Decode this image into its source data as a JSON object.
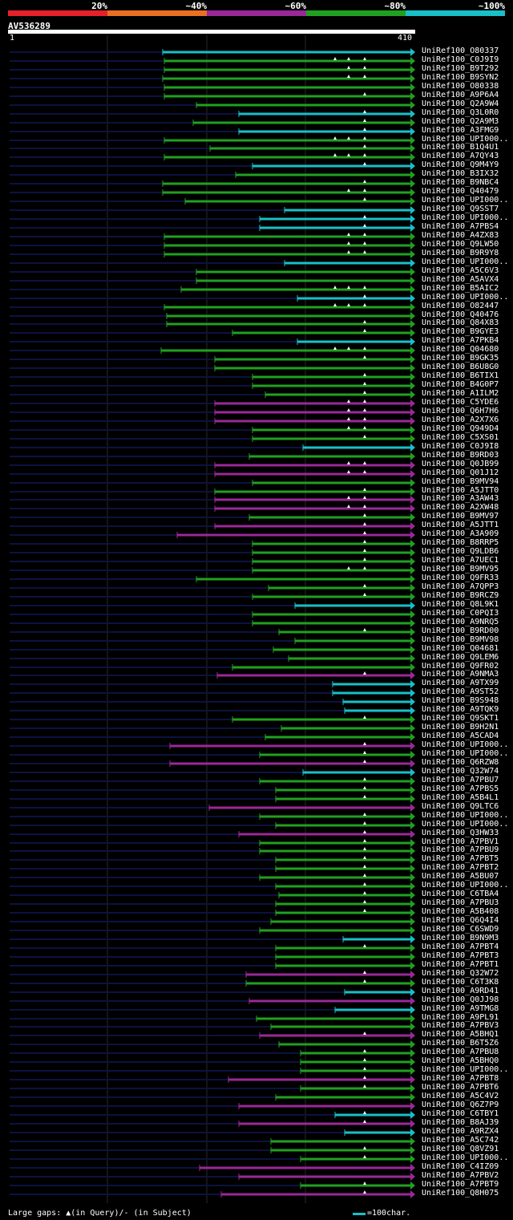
{
  "legend": [
    {
      "label": "20%",
      "color": "#e8202a"
    },
    {
      "label": "~40%",
      "color": "#e87020"
    },
    {
      "label": "~60%",
      "color": "#9a2898"
    },
    {
      "label": "~80%",
      "color": "#20a020"
    },
    {
      "label": "~100%",
      "color": "#18c0c8"
    }
  ],
  "query": {
    "name": "AV536289",
    "start": "1",
    "end": "410"
  },
  "colors": {
    "c": "#18c0c8",
    "g": "#20a020",
    "p": "#9a2898",
    "ghost": "#0c1240",
    "grid": "#2a2a2a"
  },
  "hits": [
    [
      "UniRef100_O80337",
      "c",
      203,
      0
    ],
    [
      "UniRef100_C0J9I9",
      "g",
      205,
      3
    ],
    [
      "UniRef100_B9T292",
      "g",
      205,
      2
    ],
    [
      "UniRef100_B9SYN2",
      "g",
      203,
      2
    ],
    [
      "UniRef100_O80338",
      "g",
      205,
      0
    ],
    [
      "UniRef100_A9P6A4",
      "g",
      205,
      1
    ],
    [
      "UniRef100_Q2A9W4",
      "g",
      245,
      0
    ],
    [
      "UniRef100_Q3L0R0",
      "c",
      298,
      1
    ],
    [
      "UniRef100_Q2A9M3",
      "g",
      241,
      1
    ],
    [
      "UniRef100_A3FMG9",
      "c",
      298,
      1
    ],
    [
      "UniRef100_UPI000..",
      "g",
      205,
      3
    ],
    [
      "UniRef100_B1Q4U1",
      "g",
      262,
      1
    ],
    [
      "UniRef100_A7QY43",
      "g",
      205,
      3
    ],
    [
      "UniRef100_Q9M4Y9",
      "c",
      315,
      1
    ],
    [
      "UniRef100_B3IX32",
      "g",
      294,
      0
    ],
    [
      "UniRef100_B9NBC4",
      "g",
      203,
      1
    ],
    [
      "UniRef100_Q40479",
      "g",
      203,
      2
    ],
    [
      "UniRef100_UPI000..",
      "g",
      231,
      1
    ],
    [
      "UniRef100_Q9SST7",
      "c",
      355,
      0
    ],
    [
      "UniRef100_UPI000..",
      "c",
      324,
      1
    ],
    [
      "UniRef100_A7PBS4",
      "c",
      324,
      1
    ],
    [
      "UniRef100_A4ZX83",
      "g",
      205,
      2
    ],
    [
      "UniRef100_Q9LW50",
      "g",
      205,
      2
    ],
    [
      "UniRef100_B9R9Y8",
      "g",
      205,
      2
    ],
    [
      "UniRef100_UPI000..",
      "c",
      355,
      0
    ],
    [
      "UniRef100_A5C6V3",
      "g",
      245,
      0
    ],
    [
      "UniRef100_A5AVX4",
      "g",
      245,
      0
    ],
    [
      "UniRef100_B5AIC2",
      "g",
      226,
      3
    ],
    [
      "UniRef100_UPI000..",
      "c",
      371,
      1
    ],
    [
      "UniRef100_O82447",
      "g",
      205,
      3
    ],
    [
      "UniRef100_Q40476",
      "g",
      208,
      0
    ],
    [
      "UniRef100_Q84X83",
      "g",
      208,
      1
    ],
    [
      "UniRef100_B9GYE3",
      "g",
      290,
      1
    ],
    [
      "UniRef100_A7PKB4",
      "c",
      371,
      0
    ],
    [
      "UniRef100_Q04680",
      "g",
      201,
      3
    ],
    [
      "UniRef100_B9GK35",
      "g",
      268,
      1
    ],
    [
      "UniRef100_B6U8G0",
      "g",
      268,
      0
    ],
    [
      "UniRef100_B6TIX1",
      "g",
      315,
      1
    ],
    [
      "UniRef100_B4G0P7",
      "g",
      315,
      1
    ],
    [
      "UniRef100_A1ILM2",
      "g",
      331,
      1
    ],
    [
      "UniRef100_C5YDE6",
      "p",
      268,
      2
    ],
    [
      "UniRef100_Q6H7H6",
      "p",
      268,
      2
    ],
    [
      "UniRef100_A2X7X6",
      "p",
      268,
      2
    ],
    [
      "UniRef100_Q949D4",
      "g",
      315,
      2
    ],
    [
      "UniRef100_C5XS01",
      "g",
      315,
      1
    ],
    [
      "UniRef100_C0J9I8",
      "c",
      378,
      0
    ],
    [
      "UniRef100_B9RD03",
      "g",
      311,
      0
    ],
    [
      "UniRef100_Q0JB99",
      "p",
      268,
      2
    ],
    [
      "UniRef100_Q01J12",
      "p",
      268,
      2
    ],
    [
      "UniRef100_B9MV94",
      "g",
      315,
      0
    ],
    [
      "UniRef100_A5JTT0",
      "g",
      268,
      1
    ],
    [
      "UniRef100_A3AW43",
      "p",
      268,
      2
    ],
    [
      "UniRef100_A2XW48",
      "p",
      268,
      2
    ],
    [
      "UniRef100_B9MV97",
      "g",
      311,
      1
    ],
    [
      "UniRef100_A5JTT1",
      "p",
      268,
      1
    ],
    [
      "UniRef100_A3A909",
      "p",
      221,
      1
    ],
    [
      "UniRef100_B8RRP5",
      "g",
      315,
      1
    ],
    [
      "UniRef100_Q9LDB6",
      "g",
      315,
      1
    ],
    [
      "UniRef100_A7UEC1",
      "g",
      315,
      1
    ],
    [
      "UniRef100_B9MV95",
      "g",
      315,
      2
    ],
    [
      "UniRef100_Q9FR33",
      "g",
      245,
      0
    ],
    [
      "UniRef100_A7QPP3",
      "g",
      335,
      1
    ],
    [
      "UniRef100_B9RCZ9",
      "g",
      315,
      1
    ],
    [
      "UniRef100_Q8L9K1",
      "c",
      368,
      0
    ],
    [
      "UniRef100_C0PQI3",
      "g",
      315,
      0
    ],
    [
      "UniRef100_A9NRQ5",
      "g",
      315,
      0
    ],
    [
      "UniRef100_B9RD00",
      "g",
      348,
      1
    ],
    [
      "UniRef100_B9MV98",
      "g",
      368,
      0
    ],
    [
      "UniRef100_Q04681",
      "g",
      341,
      0
    ],
    [
      "UniRef100_Q9LEM6",
      "g",
      360,
      0
    ],
    [
      "UniRef100_Q9FR02",
      "g",
      290,
      0
    ],
    [
      "UniRef100_A9NMA3",
      "p",
      271,
      1
    ],
    [
      "UniRef100_A9TX99",
      "c",
      415,
      0
    ],
    [
      "UniRef100_A9ST52",
      "c",
      415,
      0
    ],
    [
      "UniRef100_B9S948",
      "c",
      428,
      0
    ],
    [
      "UniRef100_A9TQK9",
      "c",
      430,
      0
    ],
    [
      "UniRef100_Q9SKT1",
      "g",
      290,
      1
    ],
    [
      "UniRef100_B9H2N1",
      "g",
      351,
      0
    ],
    [
      "UniRef100_A5CAD4",
      "g",
      331,
      0
    ],
    [
      "UniRef100_UPI000..",
      "p",
      212,
      1
    ],
    [
      "UniRef100_UPI000..",
      "g",
      324,
      1
    ],
    [
      "UniRef100_Q6RZW8",
      "p",
      212,
      1
    ],
    [
      "UniRef100_Q32W74",
      "c",
      378,
      0
    ],
    [
      "UniRef100_A7PBU7",
      "g",
      324,
      1
    ],
    [
      "UniRef100_A7PBS5",
      "g",
      344,
      1
    ],
    [
      "UniRef100_A5B4L1",
      "g",
      344,
      1
    ],
    [
      "UniRef100_Q9LTC6",
      "p",
      261,
      0
    ],
    [
      "UniRef100_UPI000..",
      "g",
      324,
      1
    ],
    [
      "UniRef100_UPI000..",
      "g",
      344,
      1
    ],
    [
      "UniRef100_Q3HW33",
      "p",
      298,
      1
    ],
    [
      "UniRef100_A7PBV1",
      "g",
      324,
      1
    ],
    [
      "UniRef100_A7PBU9",
      "g",
      324,
      1
    ],
    [
      "UniRef100_A7PBT5",
      "g",
      344,
      1
    ],
    [
      "UniRef100_A7PBT2",
      "g",
      344,
      1
    ],
    [
      "UniRef100_A5BU07",
      "g",
      324,
      1
    ],
    [
      "UniRef100_UPI000..",
      "g",
      344,
      1
    ],
    [
      "UniRef100_C6TBA4",
      "g",
      348,
      1
    ],
    [
      "UniRef100_A7PBU3",
      "g",
      344,
      1
    ],
    [
      "UniRef100_A5B408",
      "g",
      344,
      1
    ],
    [
      "UniRef100_Q6Q4I4",
      "g",
      338,
      0
    ],
    [
      "UniRef100_C6SWD9",
      "g",
      324,
      0
    ],
    [
      "UniRef100_B9N9M3",
      "c",
      428,
      0
    ],
    [
      "UniRef100_A7PBT4",
      "g",
      344,
      1
    ],
    [
      "UniRef100_A7PBT3",
      "g",
      344,
      0
    ],
    [
      "UniRef100_A7PBT1",
      "g",
      344,
      0
    ],
    [
      "UniRef100_Q32W72",
      "p",
      307,
      1
    ],
    [
      "UniRef100_C6T3K8",
      "g",
      307,
      1
    ],
    [
      "UniRef100_A9RD41",
      "c",
      430,
      0
    ],
    [
      "UniRef100_Q0JJ98",
      "p",
      311,
      0
    ],
    [
      "UniRef100_A9TMG8",
      "c",
      418,
      0
    ],
    [
      "UniRef100_A9PL91",
      "g",
      320,
      0
    ],
    [
      "UniRef100_A7PBV3",
      "g",
      338,
      0
    ],
    [
      "UniRef100_A5BHQ1",
      "p",
      324,
      1
    ],
    [
      "UniRef100_B6T5Z6",
      "g",
      348,
      0
    ],
    [
      "UniRef100_A7PBU8",
      "g",
      375,
      1
    ],
    [
      "UniRef100_A5BHQ0",
      "g",
      375,
      1
    ],
    [
      "UniRef100_UPI000..",
      "g",
      375,
      1
    ],
    [
      "UniRef100_A7PBT8",
      "p",
      285,
      1
    ],
    [
      "UniRef100_A7PBT6",
      "g",
      375,
      1
    ],
    [
      "UniRef100_A5C4V2",
      "g",
      344,
      0
    ],
    [
      "UniRef100_Q6Z7P9",
      "p",
      298,
      0
    ],
    [
      "UniRef100_C6TBY1",
      "c",
      418,
      1
    ],
    [
      "UniRef100_B8AJ39",
      "p",
      298,
      1
    ],
    [
      "UniRef100_A9RZX4",
      "c",
      430,
      0
    ],
    [
      "UniRef100_A5C742",
      "g",
      338,
      0
    ],
    [
      "UniRef100_Q8VZ91",
      "g",
      338,
      1
    ],
    [
      "UniRef100_UPI000..",
      "g",
      375,
      1
    ],
    [
      "UniRef100_C4IZ09",
      "p",
      249,
      0
    ],
    [
      "UniRef100_A7PBV2",
      "p",
      298,
      0
    ],
    [
      "UniRef100_A7PBT9",
      "g",
      375,
      1
    ],
    [
      "UniRef100_Q8H075",
      "p",
      276,
      1
    ]
  ],
  "footer": {
    "gaps_text": "Large gaps: ▲(in Query)/- (in Subject)",
    "scale_text": "=100char."
  }
}
